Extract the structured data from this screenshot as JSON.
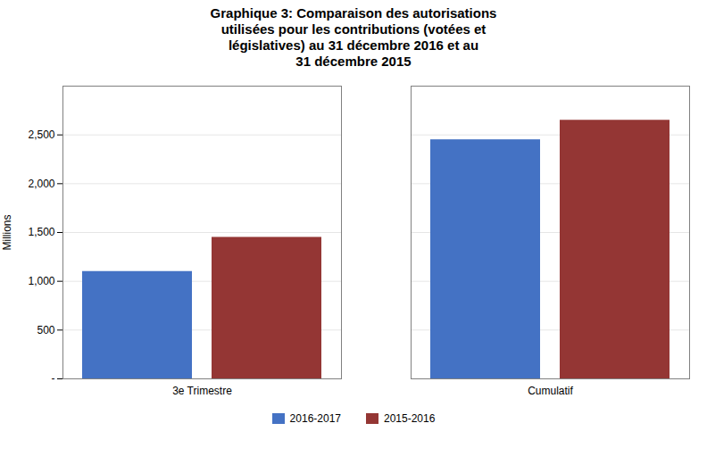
{
  "chart_data": {
    "type": "bar",
    "title": "Graphique 3: Comparaison des autorisations\nutilisées pour les contributions (votées et\nlégislatives) au 31 décembre 2016 et au\n31 décembre 2015",
    "categories": [
      "3e Trimestre",
      "Cumulatif"
    ],
    "series": [
      {
        "name": "2016-2017",
        "color": "#4472C4",
        "values": [
          1100,
          2450
        ]
      },
      {
        "name": "2015-2016",
        "color": "#943634",
        "values": [
          1450,
          2650
        ]
      }
    ],
    "ylabel": "Millions",
    "ylim": [
      0,
      3000
    ],
    "yticks": [
      {
        "value": 0,
        "label": "-"
      },
      500,
      {
        "value": 1000,
        "label": "1,000"
      },
      {
        "value": 1500,
        "label": "1,500"
      },
      {
        "value": 2000,
        "label": "2,000"
      },
      {
        "value": 2500,
        "label": "2,500"
      }
    ],
    "grid": true,
    "legend": "bottom"
  }
}
